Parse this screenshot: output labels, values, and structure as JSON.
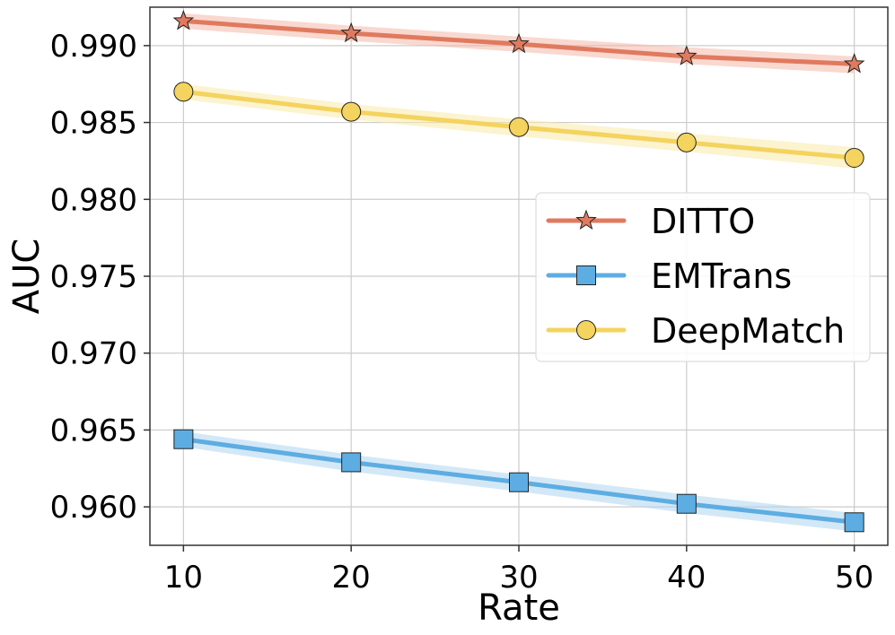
{
  "chart_data": {
    "type": "line",
    "title": "",
    "xlabel": "Rate",
    "ylabel": "AUC",
    "x": [
      10,
      20,
      30,
      40,
      50
    ],
    "xticks": [
      "10",
      "20",
      "30",
      "40",
      "50"
    ],
    "yticks": [
      "0.960",
      "0.965",
      "0.970",
      "0.975",
      "0.980",
      "0.985",
      "0.990"
    ],
    "xlim": [
      8,
      52
    ],
    "ylim": [
      0.9575,
      0.9925
    ],
    "grid": true,
    "legend_position": "center-right",
    "series": [
      {
        "name": "DITTO",
        "marker": "star",
        "color": "#E07A5F",
        "band_color": "#F4B8A8",
        "values": [
          0.9916,
          0.9908,
          0.9901,
          0.9893,
          0.9888
        ],
        "lower": [
          0.9911,
          0.9903,
          0.9896,
          0.9888,
          0.9882
        ],
        "upper": [
          0.9921,
          0.9913,
          0.9906,
          0.9899,
          0.9893
        ]
      },
      {
        "name": "EMTrans",
        "marker": "square",
        "color": "#5DADE2",
        "band_color": "#AED6F1",
        "values": [
          0.9644,
          0.9629,
          0.9616,
          0.9602,
          0.959
        ],
        "lower": [
          0.9639,
          0.9623,
          0.961,
          0.9596,
          0.9584
        ],
        "upper": [
          0.9649,
          0.9634,
          0.9621,
          0.9608,
          0.9596
        ]
      },
      {
        "name": "DeepMatch",
        "marker": "circle",
        "color": "#F4D35E",
        "band_color": "#FAE9A8",
        "values": [
          0.987,
          0.9857,
          0.9847,
          0.9837,
          0.9827
        ],
        "lower": [
          0.9865,
          0.9852,
          0.9841,
          0.9831,
          0.982
        ],
        "upper": [
          0.9875,
          0.9862,
          0.9852,
          0.9843,
          0.9834
        ]
      }
    ]
  }
}
